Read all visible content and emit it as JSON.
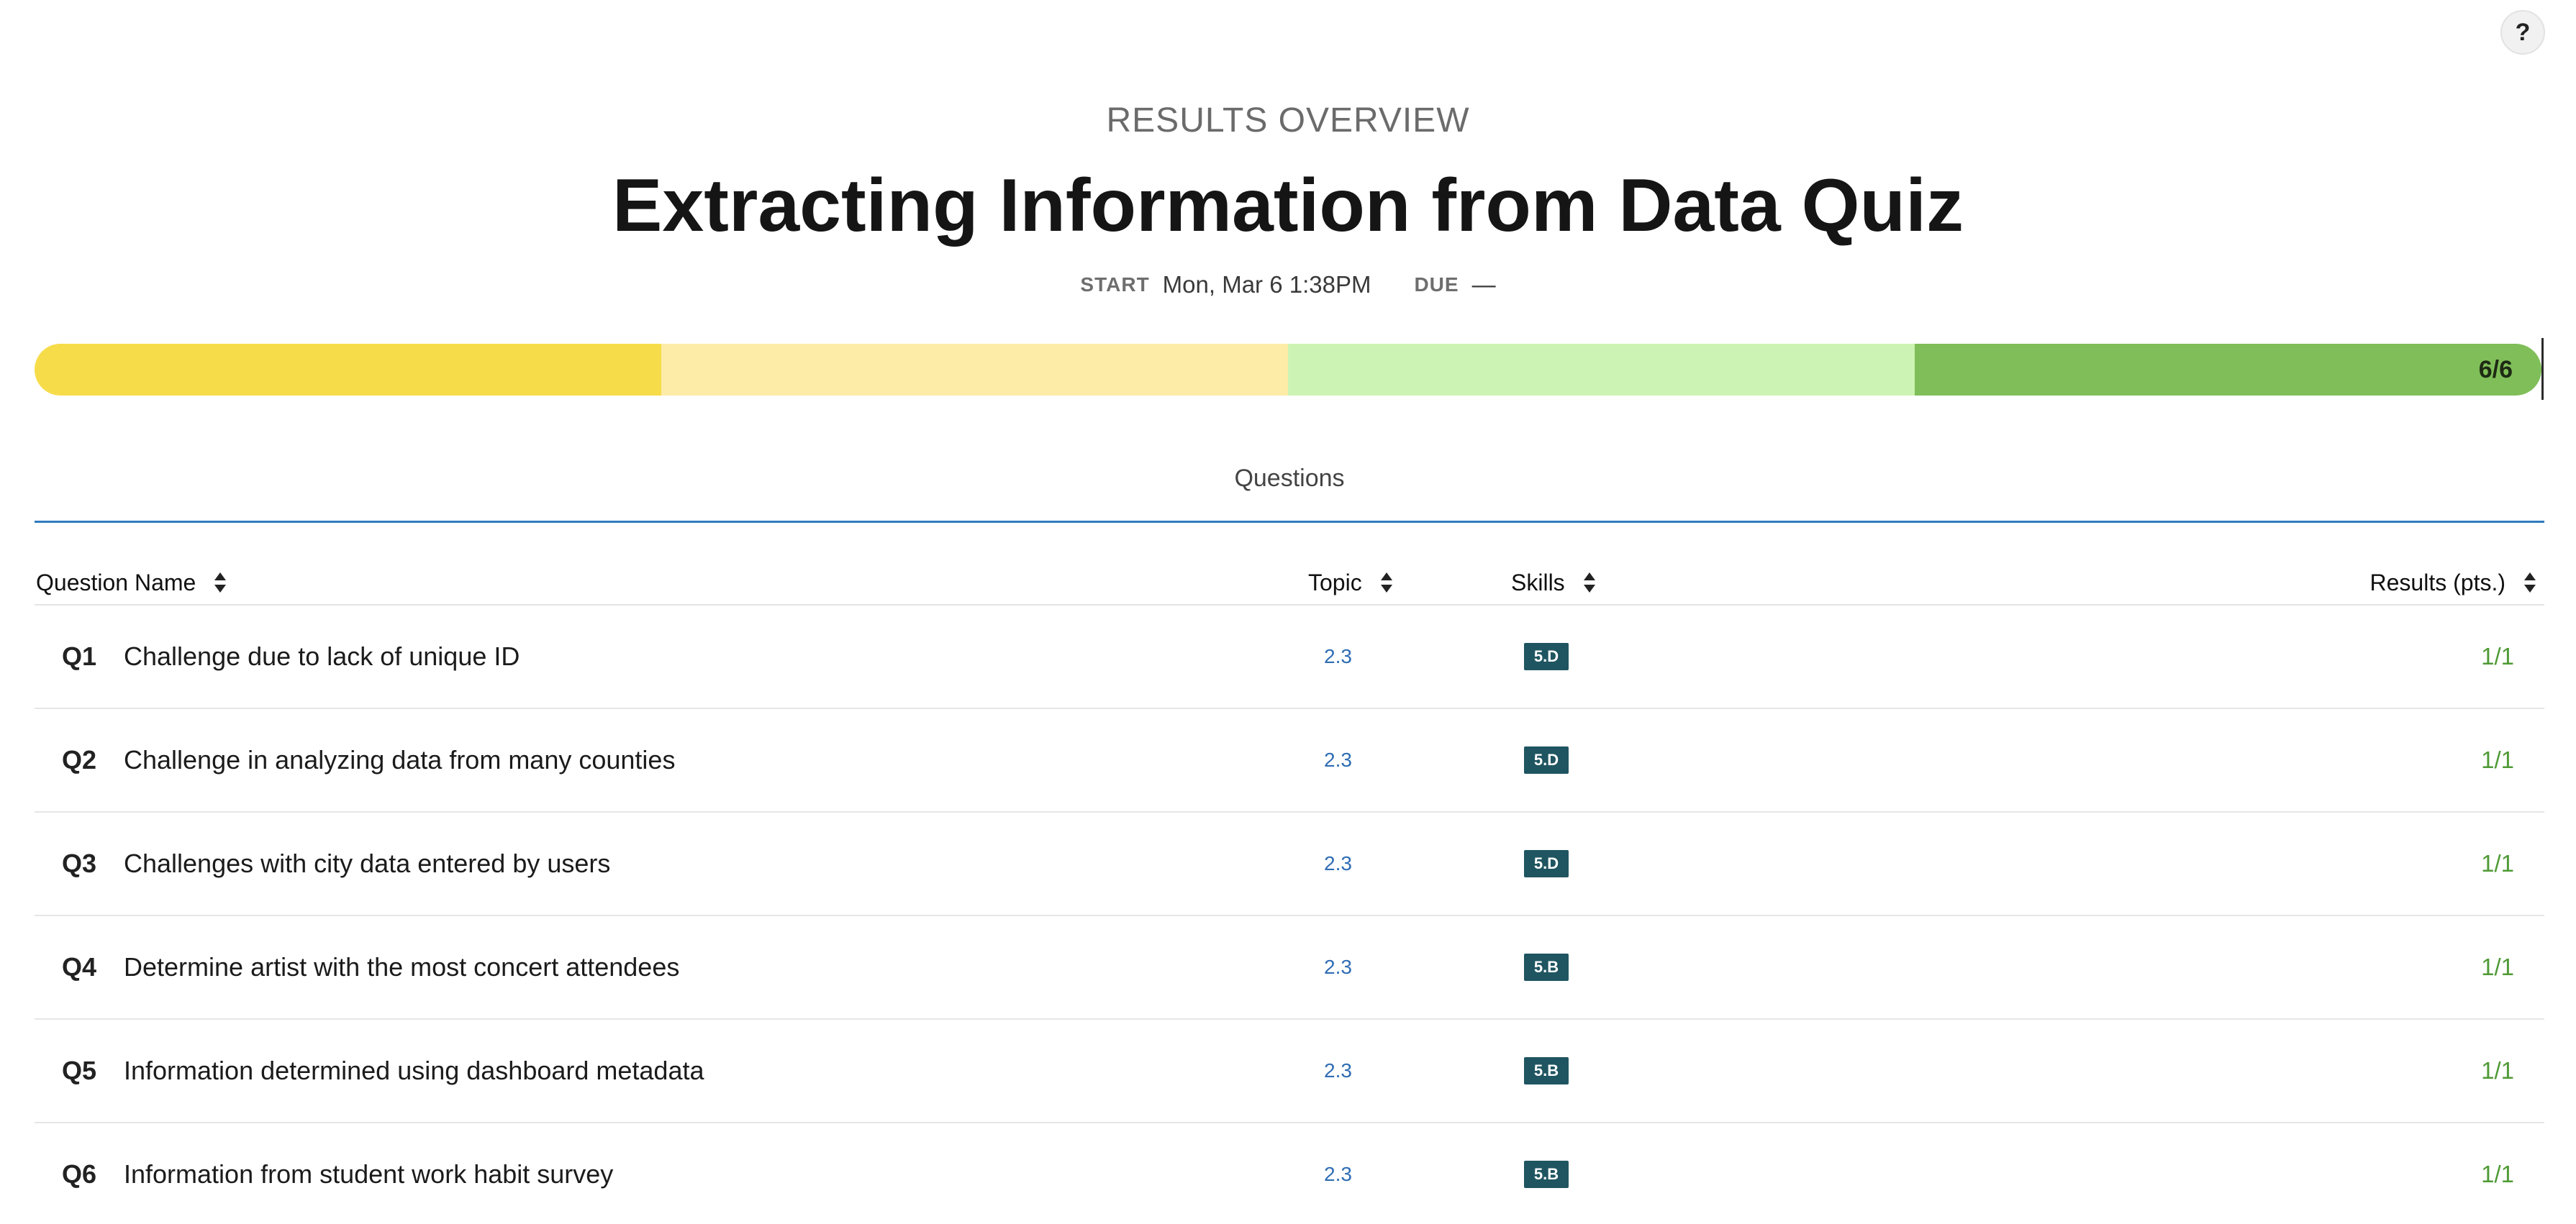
{
  "help": {
    "label": "?"
  },
  "header": {
    "eyebrow": "RESULTS OVERVIEW",
    "title": "Extracting Information from Data Quiz",
    "start_label": "START",
    "start_value": "Mon, Mar 6 1:38PM",
    "due_label": "DUE",
    "due_value": "—"
  },
  "progress": {
    "label": "6/6",
    "score_fraction": 1.0,
    "segment_colors": [
      "#f7dc4a",
      "#fdeba8",
      "#ccf3b3",
      "#7fbe58"
    ]
  },
  "tabs": [
    {
      "label": "Questions"
    }
  ],
  "table": {
    "columns": {
      "name": "Question Name",
      "topic": "Topic",
      "skills": "Skills",
      "results": "Results (pts.)"
    },
    "rows": [
      {
        "num": "Q1",
        "name": "Challenge due to lack of unique ID",
        "topic": "2.3",
        "skill": "5.D",
        "result": "1/1"
      },
      {
        "num": "Q2",
        "name": "Challenge in analyzing data from many counties",
        "topic": "2.3",
        "skill": "5.D",
        "result": "1/1"
      },
      {
        "num": "Q3",
        "name": "Challenges with city data entered by users",
        "topic": "2.3",
        "skill": "5.D",
        "result": "1/1"
      },
      {
        "num": "Q4",
        "name": "Determine artist with the most concert attendees",
        "topic": "2.3",
        "skill": "5.B",
        "result": "1/1"
      },
      {
        "num": "Q5",
        "name": "Information determined using dashboard metadata",
        "topic": "2.3",
        "skill": "5.B",
        "result": "1/1"
      },
      {
        "num": "Q6",
        "name": "Information from student work habit survey",
        "topic": "2.3",
        "skill": "5.B",
        "result": "1/1"
      }
    ]
  },
  "colors": {
    "accent_blue": "#2e7bbd",
    "skill_badge": "#1f5561",
    "result_green": "#4f9a35"
  }
}
